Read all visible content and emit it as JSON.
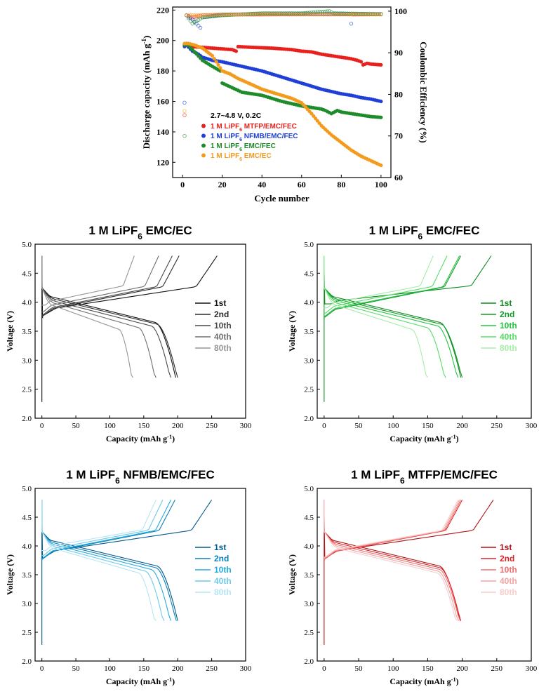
{
  "chart_data": [
    {
      "id": "cycling",
      "type": "scatter",
      "title": "",
      "xlabel": "Cycle number",
      "ylabel": "Discharge capacity (mAh g⁻¹)",
      "y2label": "Coulombic Efficiency (%)",
      "xlim": [
        -5,
        105
      ],
      "ylim": [
        110,
        222
      ],
      "y2lim": [
        60,
        101
      ],
      "xticks": [
        0,
        20,
        40,
        60,
        80,
        100
      ],
      "yticks": [
        120,
        140,
        160,
        180,
        200,
        220
      ],
      "y2ticks": [
        60,
        70,
        80,
        90,
        100
      ],
      "condition_label": "2.7~4.8 V, 0.2C",
      "legend_position": "inside-left",
      "series": [
        {
          "name": "1 M LiPF6 MTFP/EMC/FEC",
          "salt": "1 M LiPF",
          "sub": "6",
          "rest": " MTFP/EMC/FEC",
          "color": "#e8211d",
          "capacity": [
            [
              1,
              197
            ],
            [
              2,
              198
            ],
            [
              5,
              196
            ],
            [
              10,
              195.5
            ],
            [
              15,
              195
            ],
            [
              20,
              194.5
            ],
            [
              25,
              194
            ],
            [
              27,
              193
            ],
            [
              28,
              196
            ],
            [
              35,
              195.5
            ],
            [
              45,
              195
            ],
            [
              55,
              194
            ],
            [
              60,
              193
            ],
            [
              65,
              192.5
            ],
            [
              70,
              191
            ],
            [
              75,
              190
            ],
            [
              80,
              189
            ],
            [
              85,
              188
            ],
            [
              88,
              187
            ],
            [
              90,
              186
            ],
            [
              91,
              184
            ],
            [
              93,
              185
            ],
            [
              95,
              184.5
            ],
            [
              100,
              184
            ]
          ],
          "ce": [
            [
              1,
              75
            ],
            [
              2,
              99
            ],
            [
              5,
              98.5
            ],
            [
              10,
              99
            ],
            [
              20,
              99.2
            ],
            [
              40,
              99.3
            ],
            [
              60,
              99.3
            ],
            [
              80,
              99.3
            ],
            [
              100,
              99.3
            ]
          ]
        },
        {
          "name": "1 M LiPF6 NFMB/EMC/FEC",
          "salt": "1 M LiPF",
          "sub": "6",
          "rest": " NFMB/EMC/FEC",
          "color": "#1f3fd6",
          "capacity": [
            [
              1,
              196
            ],
            [
              2,
              197
            ],
            [
              5,
              193
            ],
            [
              8,
              191
            ],
            [
              10,
              189
            ],
            [
              15,
              187
            ],
            [
              20,
              186
            ],
            [
              30,
              183
            ],
            [
              40,
              180
            ],
            [
              50,
              176
            ],
            [
              60,
              172
            ],
            [
              70,
              168
            ],
            [
              80,
              165
            ],
            [
              85,
              164
            ],
            [
              90,
              162.5
            ],
            [
              95,
              161.5
            ],
            [
              100,
              160
            ]
          ],
          "ce": [
            [
              1,
              78
            ],
            [
              2,
              99
            ],
            [
              5,
              98
            ],
            [
              9,
              96
            ],
            [
              10,
              98.5
            ],
            [
              20,
              99.2
            ],
            [
              40,
              99.2
            ],
            [
              60,
              99.3
            ],
            [
              84,
              99.3
            ],
            [
              85,
              97
            ],
            [
              86,
              99.2
            ],
            [
              100,
              99.3
            ]
          ]
        },
        {
          "name": "1 M LiPF6 EMC/FEC",
          "salt": "1 M LiPF",
          "sub": "6",
          "rest": " EMC/FEC",
          "color": "#1f8c2b",
          "capacity": [
            [
              1,
              197
            ],
            [
              2,
              198
            ],
            [
              5,
              194
            ],
            [
              10,
              187
            ],
            [
              15,
              183
            ],
            [
              19,
              180
            ],
            [
              20,
              172
            ],
            [
              25,
              169
            ],
            [
              30,
              166
            ],
            [
              40,
              164
            ],
            [
              50,
              160
            ],
            [
              60,
              157
            ],
            [
              70,
              155
            ],
            [
              72,
              154
            ],
            [
              75,
              152
            ],
            [
              78,
              154
            ],
            [
              80,
              153
            ],
            [
              85,
              152
            ],
            [
              90,
              151
            ],
            [
              95,
              150
            ],
            [
              100,
              149.5
            ]
          ],
          "ce": [
            [
              1,
              70
            ],
            [
              2,
              99
            ],
            [
              5,
              97
            ],
            [
              10,
              98.5
            ],
            [
              20,
              99
            ],
            [
              40,
              99.5
            ],
            [
              60,
              99.5
            ],
            [
              74,
              100
            ],
            [
              76,
              99.5
            ],
            [
              100,
              99.3
            ]
          ]
        },
        {
          "name": "1 M LiPF6 EMC/EC",
          "salt": "1 M LiPF",
          "sub": "6",
          "rest": " EMC/EC",
          "color": "#f39b1d",
          "capacity": [
            [
              1,
              198
            ],
            [
              3,
              198
            ],
            [
              6,
              197
            ],
            [
              10,
              195
            ],
            [
              12,
              193
            ],
            [
              15,
              190
            ],
            [
              17,
              186
            ],
            [
              20,
              180
            ],
            [
              24,
              178
            ],
            [
              28,
              175
            ],
            [
              35,
              171
            ],
            [
              40,
              168
            ],
            [
              50,
              164
            ],
            [
              55,
              162
            ],
            [
              60,
              159
            ],
            [
              65,
              152
            ],
            [
              70,
              144
            ],
            [
              75,
              138
            ],
            [
              80,
              133
            ],
            [
              85,
              128
            ],
            [
              90,
              124
            ],
            [
              95,
              121
            ],
            [
              100,
              118
            ]
          ],
          "ce": [
            [
              1,
              76
            ],
            [
              2,
              99
            ],
            [
              5,
              99
            ],
            [
              10,
              99
            ],
            [
              20,
              99.2
            ],
            [
              40,
              99.2
            ],
            [
              60,
              99.2
            ],
            [
              80,
              99.2
            ],
            [
              100,
              99.2
            ]
          ]
        }
      ]
    },
    {
      "id": "emc-ec",
      "type": "line",
      "title_pre": "1 M LiPF",
      "title_sub": "6",
      "title_post": " EMC/EC",
      "xlabel": "Capacity (mAh g⁻¹)",
      "ylabel": "Voltage (V)",
      "xlim": [
        -10,
        300
      ],
      "ylim": [
        2.0,
        5.0
      ],
      "xticks": [
        0,
        50,
        100,
        150,
        200,
        250,
        300
      ],
      "yticks": [
        2.0,
        2.5,
        3.0,
        3.5,
        4.0,
        4.5,
        5.0
      ],
      "legend_position": "right",
      "curves": [
        {
          "label": "1st",
          "color": "#111111",
          "first": true,
          "qc": 258,
          "qd": 197,
          "vcs": 3.74,
          "vde": 2.7
        },
        {
          "label": "2nd",
          "color": "#2a2a2a",
          "qc": 202,
          "qd": 200,
          "vcs": 3.73,
          "vde": 2.7
        },
        {
          "label": "10th",
          "color": "#484848",
          "qc": 192,
          "qd": 190,
          "vcs": 3.76,
          "vde": 2.7
        },
        {
          "label": "40th",
          "color": "#6e6e6e",
          "qc": 172,
          "qd": 168,
          "vcs": 3.83,
          "vde": 2.7
        },
        {
          "label": "80th",
          "color": "#959595",
          "qc": 136,
          "qd": 134,
          "vcs": 3.95,
          "vde": 2.7
        }
      ]
    },
    {
      "id": "emc-fec",
      "type": "line",
      "title_pre": "1 M LiPF",
      "title_sub": "6",
      "title_post": " EMC/FEC",
      "xlabel": "Capacity (mAh g⁻¹)",
      "ylabel": "Voltage (V)",
      "xlim": [
        -10,
        300
      ],
      "ylim": [
        2.0,
        5.0
      ],
      "xticks": [
        0,
        50,
        100,
        150,
        200,
        250,
        300
      ],
      "yticks": [
        2.0,
        2.5,
        3.0,
        3.5,
        4.0,
        4.5,
        5.0
      ],
      "legend_position": "right",
      "curves": [
        {
          "label": "1st",
          "color": "#0e8a1f",
          "first": true,
          "qc": 242,
          "qd": 198,
          "vcs": 3.97,
          "vde": 2.7
        },
        {
          "label": "2nd",
          "color": "#129a26",
          "qc": 198,
          "qd": 200,
          "vcs": 3.7,
          "vde": 2.7
        },
        {
          "label": "10th",
          "color": "#22c444",
          "qc": 196,
          "qd": 194,
          "vcs": 3.73,
          "vde": 2.7
        },
        {
          "label": "40th",
          "color": "#55dd66",
          "qc": 178,
          "qd": 176,
          "vcs": 3.8,
          "vde": 2.7
        },
        {
          "label": "80th",
          "color": "#a6eea8",
          "qc": 158,
          "qd": 150,
          "vcs": 3.9,
          "vde": 2.7
        }
      ]
    },
    {
      "id": "nfmb",
      "type": "line",
      "title_pre": "1 M LiPF",
      "title_sub": "6",
      "title_post": " NFMB/EMC/FEC",
      "xlabel": "Capacity (mAh g⁻¹)",
      "ylabel": "Voltage (V)",
      "xlim": [
        -10,
        300
      ],
      "ylim": [
        2.0,
        5.0
      ],
      "xticks": [
        0,
        50,
        100,
        150,
        200,
        250,
        300
      ],
      "yticks": [
        2.0,
        2.5,
        3.0,
        3.5,
        4.0,
        4.5,
        5.0
      ],
      "legend_position": "right",
      "curves": [
        {
          "label": "1st",
          "color": "#005a8c",
          "first": true,
          "qc": 250,
          "qd": 200,
          "vcs": 3.78,
          "vde": 2.7
        },
        {
          "label": "2nd",
          "color": "#0a7fb8",
          "qc": 196,
          "qd": 198,
          "vcs": 3.75,
          "vde": 2.7
        },
        {
          "label": "10th",
          "color": "#22aadd",
          "qc": 190,
          "qd": 190,
          "vcs": 3.77,
          "vde": 2.7
        },
        {
          "label": "40th",
          "color": "#6cc9ea",
          "qc": 178,
          "qd": 180,
          "vcs": 3.83,
          "vde": 2.7
        },
        {
          "label": "80th",
          "color": "#b6e5f4",
          "qc": 168,
          "qd": 168,
          "vcs": 3.92,
          "vde": 2.7
        }
      ]
    },
    {
      "id": "mtfp",
      "type": "line",
      "title_pre": "1 M LiPF",
      "title_sub": "6",
      "title_post": " MTFP/EMC/FEC",
      "xlabel": "Capacity (mAh g⁻¹)",
      "ylabel": "Voltage (V)",
      "xlim": [
        -10,
        300
      ],
      "ylim": [
        2.0,
        5.0
      ],
      "xticks": [
        0,
        50,
        100,
        150,
        200,
        250,
        300
      ],
      "yticks": [
        2.0,
        2.5,
        3.0,
        3.5,
        4.0,
        4.5,
        5.0
      ],
      "legend_position": "right",
      "curves": [
        {
          "label": "1st",
          "color": "#b01015",
          "first": true,
          "qc": 245,
          "qd": 197,
          "vcs": 3.78,
          "vde": 2.7
        },
        {
          "label": "2nd",
          "color": "#e0242a",
          "qc": 200,
          "qd": 198,
          "vcs": 3.75,
          "vde": 2.7
        },
        {
          "label": "10th",
          "color": "#ef6f6f",
          "qc": 198,
          "qd": 197,
          "vcs": 3.76,
          "vde": 2.7
        },
        {
          "label": "40th",
          "color": "#f3a2a2",
          "qc": 196,
          "qd": 195,
          "vcs": 3.78,
          "vde": 2.7
        },
        {
          "label": "80th",
          "color": "#f8cccc",
          "qc": 194,
          "qd": 193,
          "vcs": 3.8,
          "vde": 2.7
        }
      ]
    }
  ]
}
